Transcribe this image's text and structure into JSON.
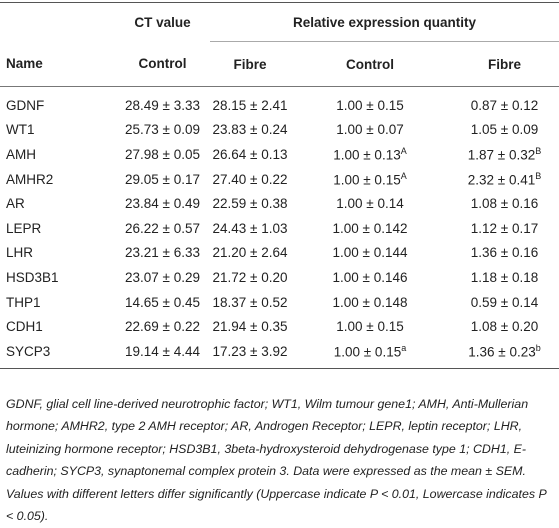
{
  "header": {
    "ct_value": "CT value",
    "relative": "Relative expression quantity",
    "columns": [
      "Name",
      "Control",
      "Fibre",
      "Control",
      "Fibre"
    ]
  },
  "table": {
    "rows": [
      [
        "GDNF",
        "28.49 ± 3.33",
        "28.15 ± 2.41",
        "1.00 ± 0.15",
        "0.87 ± 0.12"
      ],
      [
        "WT1",
        "25.73 ± 0.09",
        "23.83 ± 0.24",
        "1.00 ± 0.07",
        "1.05 ± 0.09"
      ],
      [
        "AMH",
        "27.98 ± 0.05",
        "26.64 ± 0.13",
        {
          "text": "1.00 ± 0.13",
          "sup": "A"
        },
        {
          "text": "1.87 ± 0.32",
          "sup": "B"
        }
      ],
      [
        "AMHR2",
        "29.05 ± 0.17",
        "27.40 ± 0.22",
        {
          "text": "1.00 ± 0.15",
          "sup": "A"
        },
        {
          "text": "2.32 ± 0.41",
          "sup": "B"
        }
      ],
      [
        "AR",
        "23.84 ± 0.49",
        "22.59 ± 0.38",
        "1.00 ± 0.14",
        "1.08 ± 0.16"
      ],
      [
        "LEPR",
        "26.22 ± 0.57",
        "24.43 ± 1.03",
        "1.00 ± 0.142",
        "1.12 ± 0.17"
      ],
      [
        "LHR",
        "23.21 ± 6.33",
        "21.20 ± 2.64",
        "1.00 ± 0.144",
        "1.36 ± 0.16"
      ],
      [
        "HSD3B1",
        "23.07 ± 0.29",
        "21.72 ± 0.20",
        "1.00 ± 0.146",
        "1.18 ± 0.18"
      ],
      [
        "THP1",
        "14.65 ± 0.45",
        "18.37 ± 0.52",
        "1.00 ± 0.148",
        "0.59 ± 0.14"
      ],
      [
        "CDH1",
        "22.69 ± 0.22",
        "21.94 ± 0.35",
        "1.00 ± 0.15",
        "1.08 ± 0.20"
      ],
      [
        "SYCP3",
        "19.14 ± 4.44",
        "17.23 ± 3.92",
        {
          "text": "1.00 ± 0.15",
          "sup": "a"
        },
        {
          "text": "1.36 ± 0.23",
          "sup": "b"
        }
      ]
    ]
  },
  "footnote": "GDNF, glial cell line-derived neurotrophic factor; WT1, Wilm tumour gene1; AMH, Anti-Mullerian hormone; AMHR2, type 2 AMH receptor; AR, Androgen Receptor; LEPR, leptin receptor; LHR, luteinizing hormone receptor; HSD3B1, 3beta-hydroxysteroid dehydrogenase type 1; CDH1, E-cadherin; SYCP3, synaptonemal complex protein 3. Data were expressed as the mean ± SEM. Values with different letters differ significantly (Uppercase indicate P < 0.01, Lowercase indicates P < 0.05)."
}
